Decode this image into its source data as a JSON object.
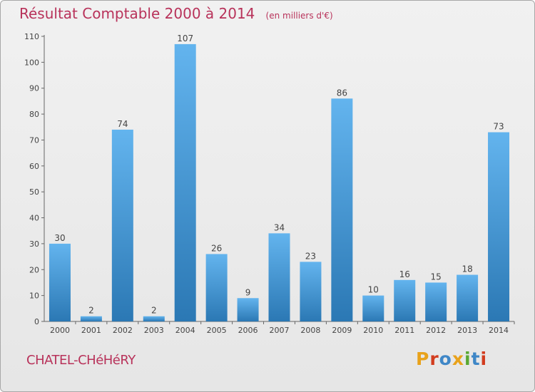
{
  "header": {
    "title": "Résultat Comptable 2000 à 2014",
    "subtitle": "(en milliers d'€)"
  },
  "footer": {
    "commune": "CHATEL-CHéHéRY",
    "logo_text": "Proxiti"
  },
  "colors": {
    "title": "#b8325a",
    "bar_top": "#63b4ee",
    "bar_bottom": "#2b78b4",
    "logo": [
      "#e8a21b",
      "#d23c1e",
      "#3f87c7",
      "#e8a21b",
      "#5aa832",
      "#3f87c7",
      "#d23c1e"
    ]
  },
  "chart_data": {
    "type": "bar",
    "title": "Résultat Comptable 2000 à 2014",
    "subtitle": "(en milliers d'€)",
    "xlabel": "",
    "ylabel": "",
    "categories": [
      "2000",
      "2001",
      "2002",
      "2003",
      "2004",
      "2005",
      "2006",
      "2007",
      "2008",
      "2009",
      "2010",
      "2011",
      "2012",
      "2013",
      "2014"
    ],
    "values": [
      30,
      2,
      74,
      2,
      107,
      26,
      9,
      34,
      23,
      86,
      10,
      16,
      15,
      18,
      73
    ],
    "data_labels": [
      "30",
      "2",
      "74",
      "2",
      "107",
      "26",
      "9",
      "34",
      "23",
      "86",
      "10",
      "16",
      "15",
      "18",
      "73"
    ],
    "ylim": [
      0,
      110
    ],
    "yticks": [
      0,
      10,
      20,
      30,
      40,
      50,
      60,
      70,
      80,
      90,
      100,
      110
    ],
    "grid": false,
    "legend": "none"
  }
}
